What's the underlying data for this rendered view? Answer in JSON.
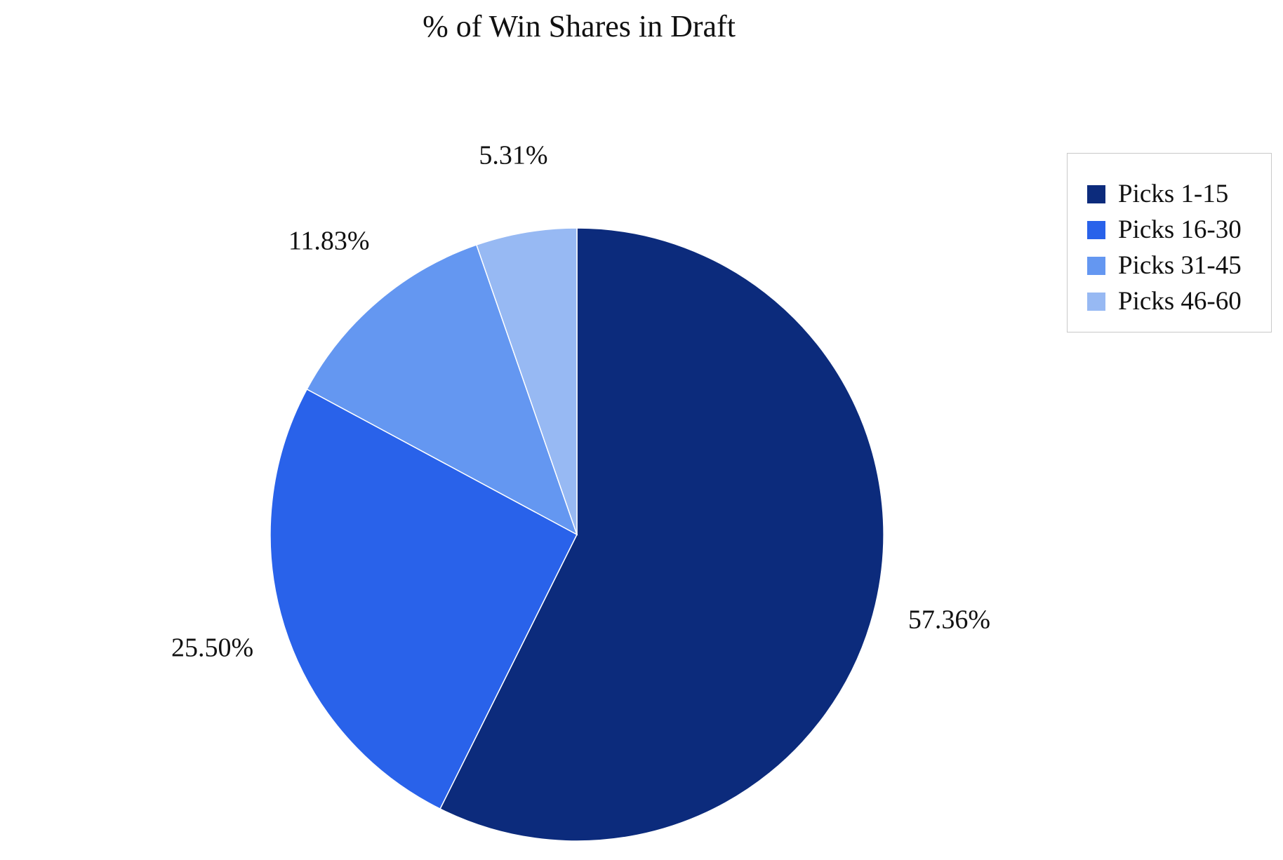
{
  "chart_data": {
    "type": "pie",
    "title": "% of Win Shares in Draft",
    "categories": [
      "Picks 1-15",
      "Picks 16-30",
      "Picks 31-45",
      "Picks 46-60"
    ],
    "values": [
      57.36,
      25.5,
      11.83,
      5.31
    ],
    "value_labels": [
      "57.36%",
      "25.50%",
      "11.83%",
      "5.31%"
    ],
    "colors": [
      "#0c2b7c",
      "#2962ea",
      "#6497f1",
      "#97b9f3"
    ],
    "start": "12 o'clock",
    "direction": "clockwise",
    "legend": {
      "position": "right",
      "entries": [
        "Picks 1-15",
        "Picks 16-30",
        "Picks 31-45",
        "Picks 46-60"
      ]
    }
  }
}
